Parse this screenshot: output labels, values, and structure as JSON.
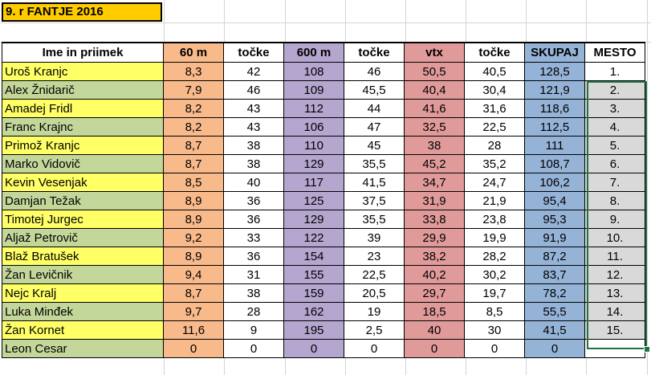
{
  "sheet": {
    "title": "9. r FANTJE 2016",
    "headers": [
      "Ime in priimek",
      "60 m",
      "točke",
      "600 m",
      "točke",
      "vtx",
      "točke",
      "SKUPAJ",
      "MESTO"
    ],
    "rows": [
      {
        "name": "Uroš Kranjc",
        "m60": "8,3",
        "p60": "42",
        "m600": "108",
        "p600": "46",
        "vtx": "50,5",
        "pvtx": "40,5",
        "total": "128,5",
        "rank": "1."
      },
      {
        "name": "Alex Žnidarič",
        "m60": "7,9",
        "p60": "46",
        "m600": "109",
        "p600": "45,5",
        "vtx": "40,4",
        "pvtx": "30,4",
        "total": "121,9",
        "rank": "2."
      },
      {
        "name": "Amadej Fridl",
        "m60": "8,2",
        "p60": "43",
        "m600": "112",
        "p600": "44",
        "vtx": "41,6",
        "pvtx": "31,6",
        "total": "118,6",
        "rank": "3."
      },
      {
        "name": "Franc Krajnc",
        "m60": "8,2",
        "p60": "43",
        "m600": "106",
        "p600": "47",
        "vtx": "32,5",
        "pvtx": "22,5",
        "total": "112,5",
        "rank": "4."
      },
      {
        "name": "Primož Kranjc",
        "m60": "8,7",
        "p60": "38",
        "m600": "110",
        "p600": "45",
        "vtx": "38",
        "pvtx": "28",
        "total": "111",
        "rank": "5."
      },
      {
        "name": "Marko Vidovič",
        "m60": "8,7",
        "p60": "38",
        "m600": "129",
        "p600": "35,5",
        "vtx": "45,2",
        "pvtx": "35,2",
        "total": "108,7",
        "rank": "6."
      },
      {
        "name": "Kevin Vesenjak",
        "m60": "8,5",
        "p60": "40",
        "m600": "117",
        "p600": "41,5",
        "vtx": "34,7",
        "pvtx": "24,7",
        "total": "106,2",
        "rank": "7."
      },
      {
        "name": "Damjan Težak",
        "m60": "8,9",
        "p60": "36",
        "m600": "125",
        "p600": "37,5",
        "vtx": "31,9",
        "pvtx": "21,9",
        "total": "95,4",
        "rank": "8."
      },
      {
        "name": "Timotej Jurgec",
        "m60": "8,9",
        "p60": "36",
        "m600": "129",
        "p600": "35,5",
        "vtx": "33,8",
        "pvtx": "23,8",
        "total": "95,3",
        "rank": "9."
      },
      {
        "name": "Aljaž Petrovič",
        "m60": "9,2",
        "p60": "33",
        "m600": "122",
        "p600": "39",
        "vtx": "29,9",
        "pvtx": "19,9",
        "total": "91,9",
        "rank": "10."
      },
      {
        "name": "Blaž Bratušek",
        "m60": "8,9",
        "p60": "36",
        "m600": "154",
        "p600": "23",
        "vtx": "38,2",
        "pvtx": "28,2",
        "total": "87,2",
        "rank": "11."
      },
      {
        "name": "Žan Levičnik",
        "m60": "9,4",
        "p60": "31",
        "m600": "155",
        "p600": "22,5",
        "vtx": "40,2",
        "pvtx": "30,2",
        "total": "83,7",
        "rank": "12."
      },
      {
        "name": "Nejc Kralj",
        "m60": "8,7",
        "p60": "38",
        "m600": "159",
        "p600": "20,5",
        "vtx": "29,7",
        "pvtx": "19,7",
        "total": "78,2",
        "rank": "13."
      },
      {
        "name": "Luka Minđek",
        "m60": "9,7",
        "p60": "28",
        "m600": "162",
        "p600": "19",
        "vtx": "18,5",
        "pvtx": "8,5",
        "total": "55,5",
        "rank": "14."
      },
      {
        "name": "Žan Kornet",
        "m60": "11,6",
        "p60": "9",
        "m600": "195",
        "p600": "2,5",
        "vtx": "40",
        "pvtx": "30",
        "total": "41,5",
        "rank": "15."
      },
      {
        "name": "Leon Cesar",
        "m60": "0",
        "p60": "0",
        "m600": "0",
        "p600": "0",
        "vtx": "0",
        "pvtx": "0",
        "total": "0",
        "rank": ""
      }
    ]
  },
  "colors": {
    "title_fill": "#ffcc00",
    "col_60m": "#f8b98b",
    "col_600m": "#b4a6cf",
    "col_vtx": "#e09a9a",
    "col_total": "#95b3d7",
    "name_yellow": "#ffff66",
    "name_green": "#c4d79b",
    "rank_gray": "#d9d9d9",
    "selection": "#217346"
  }
}
